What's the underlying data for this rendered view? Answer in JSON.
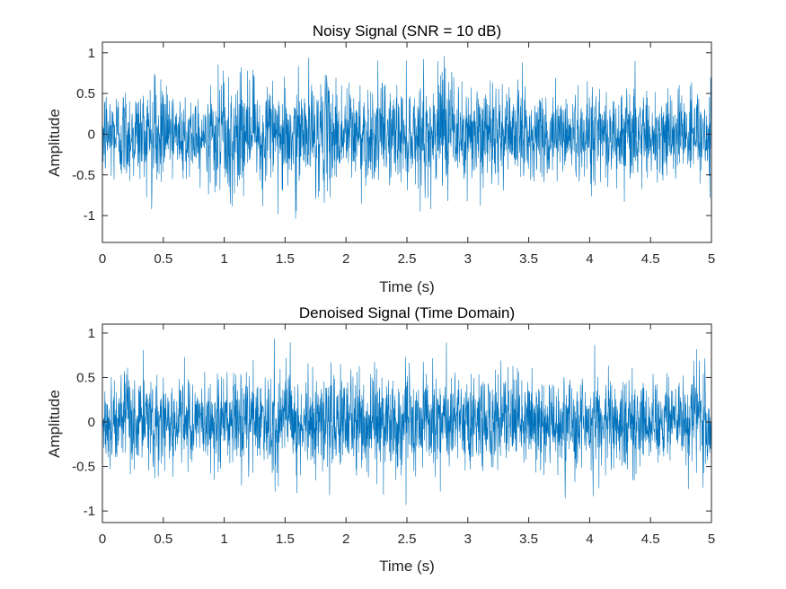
{
  "figure": {
    "background": "#ffffff",
    "axes_color": "#262626",
    "line_color": "#0072BD"
  },
  "chart_data": [
    {
      "type": "line",
      "title": "Noisy Signal (SNR = 10 dB)",
      "xlabel": "Time (s)",
      "ylabel": "Amplitude",
      "xlim": [
        0,
        5
      ],
      "ylim": [
        -1.33,
        1.13
      ],
      "xticks": [
        0,
        0.5,
        1,
        1.5,
        2,
        2.5,
        3,
        3.5,
        4,
        4.5,
        5
      ],
      "xtick_labels": [
        "0",
        "0.5",
        "1",
        "1.5",
        "2",
        "2.5",
        "3",
        "3.5",
        "4",
        "4.5",
        "5"
      ],
      "yticks": [
        -1,
        -0.5,
        0,
        0.5,
        1
      ],
      "ytick_labels": [
        "-1",
        "-0.5",
        "0",
        "0.5",
        "1"
      ],
      "grid": false,
      "series": [
        {
          "color": "#0072BD",
          "x_range": [
            0,
            5
          ],
          "envelope_abs_peak": [
            0.95,
            0.9,
            1.0,
            0.85,
            1.05,
            1.0,
            1.0,
            1.2,
            1.05,
            0.95,
            0.95,
            0.95,
            1.0,
            1.0,
            0.9,
            0.9,
            0.95,
            0.95,
            0.9,
            0.9,
            0.85
          ],
          "envelope_rms": [
            0.3,
            0.3,
            0.3,
            0.25,
            0.32,
            0.3,
            0.32,
            0.34,
            0.32,
            0.3,
            0.3,
            0.31,
            0.3,
            0.3,
            0.28,
            0.28,
            0.3,
            0.3,
            0.28,
            0.28,
            0.28
          ],
          "min_value": -1.3,
          "max_value": 1.15
        }
      ]
    },
    {
      "type": "line",
      "title": "Denoised Signal (Time Domain)",
      "xlabel": "Time (s)",
      "ylabel": "Amplitude",
      "xlim": [
        0,
        5
      ],
      "ylim": [
        -1.13,
        1.1
      ],
      "xticks": [
        0,
        0.5,
        1,
        1.5,
        2,
        2.5,
        3,
        3.5,
        4,
        4.5,
        5
      ],
      "xtick_labels": [
        "0",
        "0.5",
        "1",
        "1.5",
        "2",
        "2.5",
        "3",
        "3.5",
        "4",
        "4.5",
        "5"
      ],
      "yticks": [
        -1,
        -0.5,
        0,
        0.5,
        1
      ],
      "ytick_labels": [
        "-1",
        "-0.5",
        "0",
        "0.5",
        "1"
      ],
      "grid": false,
      "series": [
        {
          "color": "#0072BD",
          "x_range": [
            0,
            5
          ],
          "envelope_abs_peak": [
            0.85,
            0.85,
            0.95,
            0.8,
            1.0,
            0.95,
            0.95,
            1.0,
            1.0,
            0.9,
            0.95,
            0.9,
            0.95,
            0.95,
            0.85,
            0.85,
            0.9,
            0.9,
            0.85,
            0.85,
            0.8
          ],
          "envelope_rms": [
            0.26,
            0.26,
            0.27,
            0.22,
            0.28,
            0.27,
            0.28,
            0.3,
            0.28,
            0.27,
            0.27,
            0.28,
            0.27,
            0.27,
            0.25,
            0.25,
            0.27,
            0.27,
            0.25,
            0.25,
            0.25
          ],
          "min_value": -1.12,
          "max_value": 1.07
        }
      ]
    }
  ]
}
